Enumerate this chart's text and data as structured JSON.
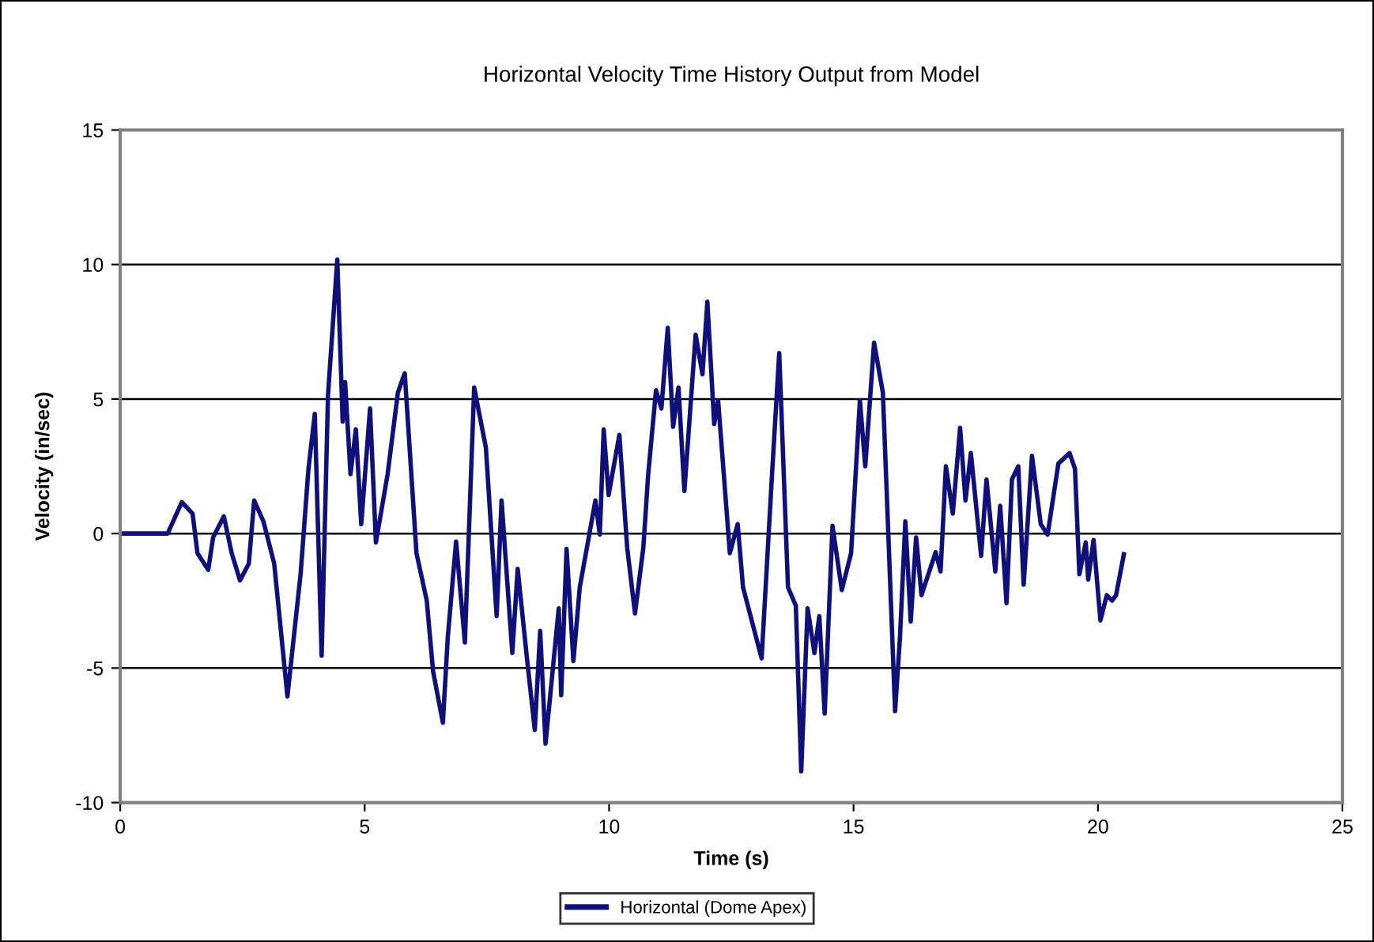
{
  "chart_data": {
    "type": "line",
    "title": "Horizontal Velocity Time History Output from Model",
    "xlabel": "Time (s)",
    "ylabel": "Velocity (in/sec)",
    "xlim": [
      0,
      25
    ],
    "xticks": [
      0,
      5,
      10,
      15,
      20,
      25
    ],
    "ylim": [
      -10,
      15
    ],
    "yticks": [
      -10,
      -5,
      0,
      5,
      10,
      15
    ],
    "grid": "y",
    "legend": "bottom",
    "marker": "none",
    "line_style": "solid",
    "series": [
      {
        "name": "Horizontal (Dome Apex)",
        "color": "#10107a",
        "x": [
          0,
          0.97,
          1.26,
          1.48,
          1.58,
          1.8,
          1.9,
          2.12,
          2.28,
          2.45,
          2.63,
          2.74,
          2.93,
          3.15,
          3.42,
          3.69,
          3.85,
          3.98,
          4.12,
          4.25,
          4.44,
          4.55,
          4.6,
          4.71,
          4.82,
          4.93,
          5.11,
          5.23,
          5.47,
          5.68,
          5.82,
          6.06,
          6.27,
          6.4,
          6.6,
          6.7,
          6.87,
          7.05,
          7.24,
          7.48,
          7.7,
          7.8,
          8.02,
          8.13,
          8.32,
          8.48,
          8.59,
          8.7,
          8.97,
          9.02,
          9.13,
          9.27,
          9.4,
          9.72,
          9.81,
          9.89,
          9.99,
          10.21,
          10.37,
          10.53,
          10.7,
          10.8,
          10.96,
          11.07,
          11.2,
          11.31,
          11.42,
          11.54,
          11.77,
          11.91,
          12.01,
          12.15,
          12.23,
          12.47,
          12.63,
          12.74,
          13.12,
          13.33,
          13.48,
          13.66,
          13.82,
          13.93,
          14.06,
          14.2,
          14.3,
          14.41,
          14.57,
          14.76,
          14.95,
          15.13,
          15.24,
          15.42,
          15.6,
          15.71,
          15.85,
          15.95,
          16.06,
          16.17,
          16.28,
          16.39,
          16.68,
          16.78,
          16.89,
          17.03,
          17.18,
          17.29,
          17.4,
          17.61,
          17.72,
          17.9,
          18.0,
          18.13,
          18.24,
          18.37,
          18.48,
          18.65,
          18.83,
          18.97,
          19.19,
          19.42,
          19.53,
          19.62,
          19.75,
          19.8,
          19.91,
          20.05,
          20.18,
          20.29,
          20.37,
          20.53
        ],
        "values": [
          0,
          0,
          1.17,
          0.74,
          -0.73,
          -1.35,
          -0.14,
          0.64,
          -0.73,
          -1.74,
          -1.12,
          1.23,
          0.45,
          -1.12,
          -6.05,
          -1.5,
          2.4,
          4.45,
          -4.54,
          5.14,
          10.19,
          4.16,
          5.63,
          2.21,
          3.87,
          0.35,
          4.65,
          -0.33,
          2.21,
          5.24,
          5.96,
          -0.73,
          -2.49,
          -5.13,
          -7.03,
          -3.86,
          -0.3,
          -4.05,
          5.43,
          3.19,
          -3.07,
          1.23,
          -4.44,
          -1.31,
          -4.64,
          -7.3,
          -3.62,
          -7.81,
          -2.78,
          -6.01,
          -0.57,
          -4.74,
          -2.0,
          1.23,
          -0.04,
          3.87,
          1.43,
          3.67,
          -0.53,
          -2.97,
          -0.53,
          2.21,
          5.33,
          4.65,
          7.65,
          3.97,
          5.43,
          1.58,
          7.39,
          5.92,
          8.62,
          4.07,
          4.95,
          -0.73,
          0.35,
          -2.0,
          -4.64,
          2.11,
          6.71,
          -2.0,
          -2.68,
          -8.84,
          -2.78,
          -4.44,
          -3.07,
          -6.69,
          0.29,
          -2.1,
          -0.73,
          4.95,
          2.5,
          7.1,
          5.24,
          0.06,
          -6.6,
          -3.86,
          0.45,
          -3.27,
          -0.14,
          -2.29,
          -0.69,
          -1.41,
          2.5,
          0.74,
          3.93,
          1.23,
          2.99,
          -0.83,
          2.01,
          -1.41,
          1.03,
          -2.59,
          2.01,
          2.5,
          -1.9,
          2.89,
          0.35,
          -0.04,
          2.6,
          2.99,
          2.4,
          -1.51,
          -0.33,
          -1.71,
          -0.24,
          -3.23,
          -2.29,
          -2.49,
          -2.29,
          -0.77
        ]
      }
    ]
  }
}
